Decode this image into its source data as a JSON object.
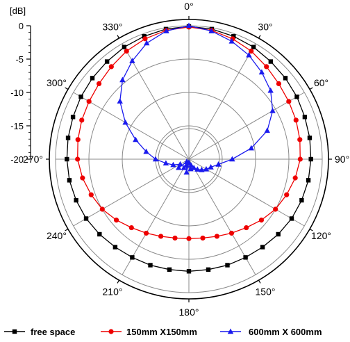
{
  "chart_data": {
    "type": "polar-line",
    "unit_label": "[dB]",
    "r_range": [
      -20,
      0
    ],
    "r_ticks": [
      "0",
      "-5",
      "-10",
      "-15",
      "-20"
    ],
    "angle_ticks": [
      {
        "deg": 0,
        "label": "0°"
      },
      {
        "deg": 30,
        "label": "30°"
      },
      {
        "deg": 60,
        "label": "60°"
      },
      {
        "deg": 90,
        "label": "90°"
      },
      {
        "deg": 120,
        "label": "120°"
      },
      {
        "deg": 150,
        "label": "150°"
      },
      {
        "deg": 180,
        "label": "180°"
      },
      {
        "deg": 210,
        "label": "210°"
      },
      {
        "deg": 240,
        "label": "240°"
      },
      {
        "deg": 270,
        "label": "270°"
      },
      {
        "deg": 300,
        "label": "300°"
      },
      {
        "deg": 330,
        "label": "330°"
      }
    ],
    "grid": true,
    "legend_position": "bottom",
    "series": [
      {
        "name": "free space",
        "color": "#000000",
        "marker": "square",
        "points": [
          [
            0,
            -0.1
          ],
          [
            10,
            -0.2
          ],
          [
            20,
            -0.4
          ],
          [
            30,
            -0.6
          ],
          [
            40,
            -0.9
          ],
          [
            50,
            -1.1
          ],
          [
            60,
            -1.3
          ],
          [
            70,
            -1.5
          ],
          [
            80,
            -1.6
          ],
          [
            90,
            -1.7
          ],
          [
            100,
            -1.8
          ],
          [
            110,
            -2.0
          ],
          [
            120,
            -2.2
          ],
          [
            130,
            -2.5
          ],
          [
            140,
            -2.8
          ],
          [
            150,
            -3.0
          ],
          [
            160,
            -3.1
          ],
          [
            170,
            -3.2
          ],
          [
            180,
            -3.2
          ],
          [
            190,
            -3.2
          ],
          [
            200,
            -3.1
          ],
          [
            210,
            -3.0
          ],
          [
            220,
            -2.8
          ],
          [
            230,
            -2.5
          ],
          [
            240,
            -2.2
          ],
          [
            250,
            -2.0
          ],
          [
            260,
            -1.8
          ],
          [
            270,
            -1.7
          ],
          [
            280,
            -1.6
          ],
          [
            290,
            -1.5
          ],
          [
            300,
            -1.3
          ],
          [
            310,
            -1.1
          ],
          [
            320,
            -0.9
          ],
          [
            330,
            -0.6
          ],
          [
            340,
            -0.4
          ],
          [
            350,
            -0.2
          ]
        ]
      },
      {
        "name": "150mm X150mm",
        "color": "#ee0000",
        "marker": "circle",
        "points": [
          [
            0,
            -0.2
          ],
          [
            10,
            -0.4
          ],
          [
            20,
            -0.8
          ],
          [
            30,
            -1.3
          ],
          [
            40,
            -1.9
          ],
          [
            50,
            -2.4
          ],
          [
            60,
            -2.7
          ],
          [
            70,
            -2.9
          ],
          [
            80,
            -3.1
          ],
          [
            90,
            -3.3
          ],
          [
            100,
            -3.8
          ],
          [
            110,
            -4.4
          ],
          [
            120,
            -5.0
          ],
          [
            130,
            -5.8
          ],
          [
            140,
            -6.6
          ],
          [
            150,
            -7.2
          ],
          [
            160,
            -7.7
          ],
          [
            170,
            -8.0
          ],
          [
            180,
            -8.1
          ],
          [
            190,
            -8.0
          ],
          [
            200,
            -7.7
          ],
          [
            210,
            -7.2
          ],
          [
            220,
            -6.6
          ],
          [
            230,
            -5.8
          ],
          [
            240,
            -5.0
          ],
          [
            250,
            -4.4
          ],
          [
            260,
            -3.8
          ],
          [
            270,
            -3.3
          ],
          [
            280,
            -3.1
          ],
          [
            290,
            -2.9
          ],
          [
            300,
            -2.7
          ],
          [
            310,
            -2.4
          ],
          [
            320,
            -1.9
          ],
          [
            330,
            -1.3
          ],
          [
            340,
            -0.8
          ],
          [
            350,
            -0.4
          ]
        ]
      },
      {
        "name": "600mm X 600mm",
        "color": "#1a1aee",
        "marker": "triangle",
        "points": [
          [
            0,
            0.0
          ],
          [
            10,
            -0.5
          ],
          [
            20,
            -1.2
          ],
          [
            30,
            -2.0
          ],
          [
            40,
            -3.0
          ],
          [
            50,
            -4.0
          ],
          [
            60,
            -5.5
          ],
          [
            70,
            -7.5
          ],
          [
            80,
            -10.5
          ],
          [
            90,
            -13.5
          ],
          [
            100,
            -15.5
          ],
          [
            110,
            -16.5
          ],
          [
            120,
            -17.0
          ],
          [
            130,
            -17.5
          ],
          [
            140,
            -18.0
          ],
          [
            150,
            -18.5
          ],
          [
            160,
            -19.0
          ],
          [
            170,
            -18.5
          ],
          [
            180,
            -19.5
          ],
          [
            190,
            -18.0
          ],
          [
            200,
            -19.0
          ],
          [
            210,
            -18.5
          ],
          [
            220,
            -19.5
          ],
          [
            230,
            -18.0
          ],
          [
            240,
            -18.5
          ],
          [
            250,
            -17.5
          ],
          [
            260,
            -16.5
          ],
          [
            270,
            -15.0
          ],
          [
            280,
            -13.5
          ],
          [
            290,
            -11.5
          ],
          [
            300,
            -9.0
          ],
          [
            310,
            -6.5
          ],
          [
            320,
            -4.5
          ],
          [
            330,
            -3.0
          ],
          [
            340,
            -1.5
          ],
          [
            350,
            -0.5
          ]
        ]
      }
    ]
  }
}
